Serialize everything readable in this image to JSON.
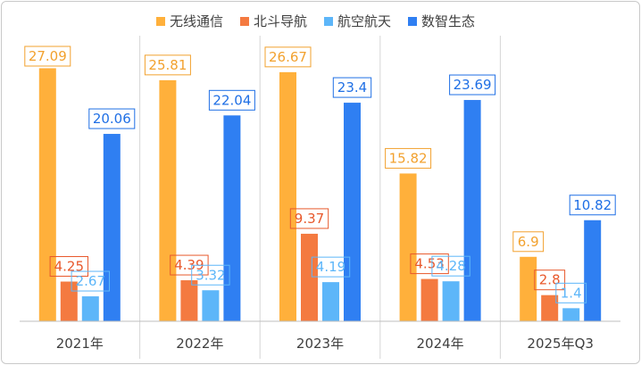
{
  "chart_data": {
    "type": "bar",
    "categories": [
      "2021年",
      "2022年",
      "2023年",
      "2024年",
      "2025年Q3"
    ],
    "series": [
      {
        "name": "无线通信",
        "values": [
          27.09,
          25.81,
          26.67,
          15.82,
          6.9
        ],
        "color": "#FFB03B"
      },
      {
        "name": "北斗导航",
        "values": [
          4.25,
          4.39,
          9.37,
          4.53,
          2.8
        ],
        "color": "#F47A40"
      },
      {
        "name": "航空航天",
        "values": [
          2.67,
          3.32,
          4.19,
          4.28,
          1.4
        ],
        "color": "#5DB6F9"
      },
      {
        "name": "数智生态",
        "values": [
          20.06,
          22.04,
          23.4,
          23.69,
          10.82
        ],
        "color": "#2F7FF2"
      }
    ],
    "label_colors": [
      "#F2A12E",
      "#E8582B",
      "#5DB6F9",
      "#1F6FE5"
    ],
    "ylim": [
      0,
      30
    ],
    "grid": "vertical separators only",
    "legend_position": "top-center",
    "title": "",
    "xlabel": "",
    "ylabel": ""
  }
}
